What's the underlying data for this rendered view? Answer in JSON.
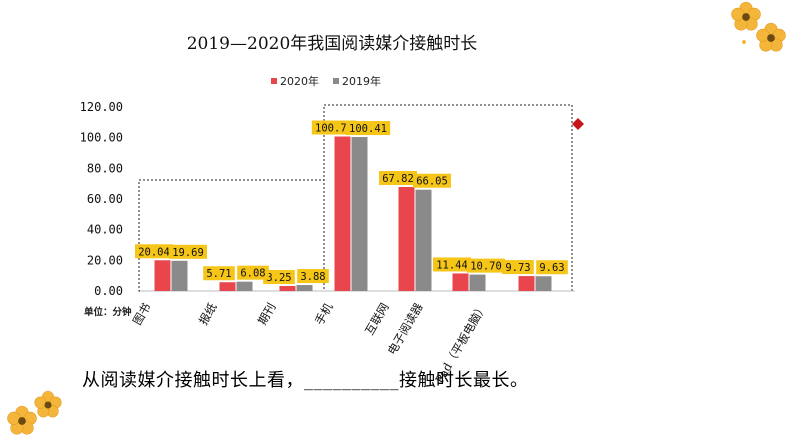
{
  "page_title": "2019—2020年我国阅读媒介接触时长",
  "unit_label": "单位：分钟",
  "question": {
    "prefix": "从阅读媒介接触时长上看，",
    "blank": "__________",
    "suffix": "接触时长最长。"
  },
  "chart_data": {
    "type": "bar",
    "title": "2019—2020年我国阅读媒介接触时长",
    "categories": [
      "图书",
      "报纸",
      "期刊",
      "手机",
      "互联网",
      "电子阅读器",
      "Pad（平板电脑）"
    ],
    "series": [
      {
        "name": "2020年",
        "color": "#e8454d",
        "values": [
          20.04,
          5.71,
          3.25,
          100.75,
          67.82,
          11.44,
          9.73
        ]
      },
      {
        "name": "2019年",
        "color": "#8a8a8a",
        "values": [
          19.69,
          6.08,
          3.88,
          100.41,
          66.05,
          10.7,
          9.63
        ]
      }
    ],
    "data_labels": [
      [
        "20.04",
        "5.71",
        "3.25",
        "100.75",
        "67.82",
        "11.44",
        "9.73"
      ],
      [
        "19.69",
        "6.08",
        "3.88",
        "100.41",
        "66.05",
        "10.70",
        "9.63"
      ]
    ],
    "yticks": [
      "0.00",
      "20.00",
      "40.00",
      "60.00",
      "80.00",
      "100.00",
      "120.00"
    ],
    "ylim": [
      0,
      120
    ],
    "ylabel": "单位：分钟",
    "legend_position": "top",
    "grid": false,
    "label_box_color": "#f5c518"
  }
}
